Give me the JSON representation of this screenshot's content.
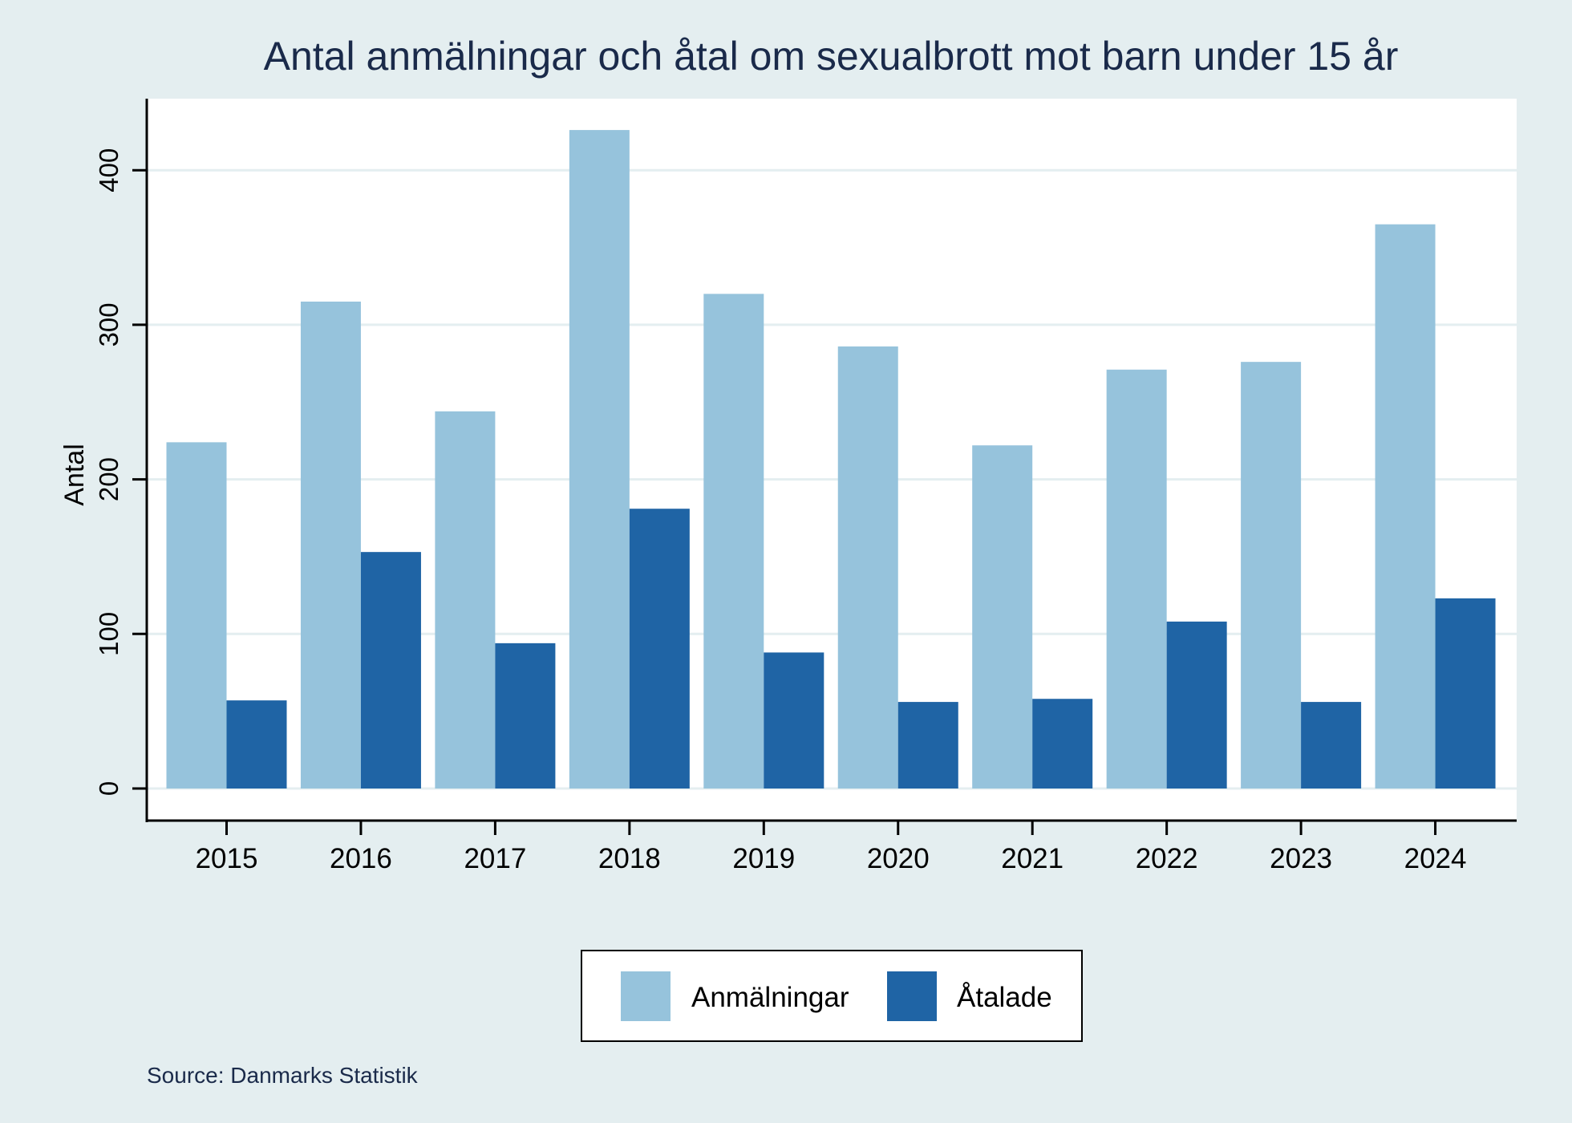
{
  "chart_data": {
    "type": "bar",
    "title": "Antal anmälningar och åtal om sexualbrott mot barn under 15 år",
    "xlabel": "",
    "ylabel": "Antal",
    "categories": [
      "2015",
      "2016",
      "2017",
      "2018",
      "2019",
      "2020",
      "2021",
      "2022",
      "2023",
      "2024"
    ],
    "series": [
      {
        "name": "Anmälningar",
        "color": "#96c3dc",
        "values": [
          224,
          315,
          244,
          426,
          320,
          286,
          222,
          271,
          276,
          365
        ]
      },
      {
        "name": "Åtalade",
        "color": "#1f64a5",
        "values": [
          57,
          153,
          94,
          181,
          88,
          56,
          58,
          108,
          56,
          123
        ]
      }
    ],
    "yticks": [
      0,
      100,
      200,
      300,
      400
    ],
    "ylim": [
      -20,
      445
    ],
    "grid": true,
    "legend_position": "bottom",
    "source": "Source: Danmarks Statistik",
    "colors": {
      "background": "#e4eef0",
      "plot_area": "#ffffff",
      "gridline": "#e4eef0",
      "title": "#1a2a4a",
      "axis": "#000000"
    }
  }
}
